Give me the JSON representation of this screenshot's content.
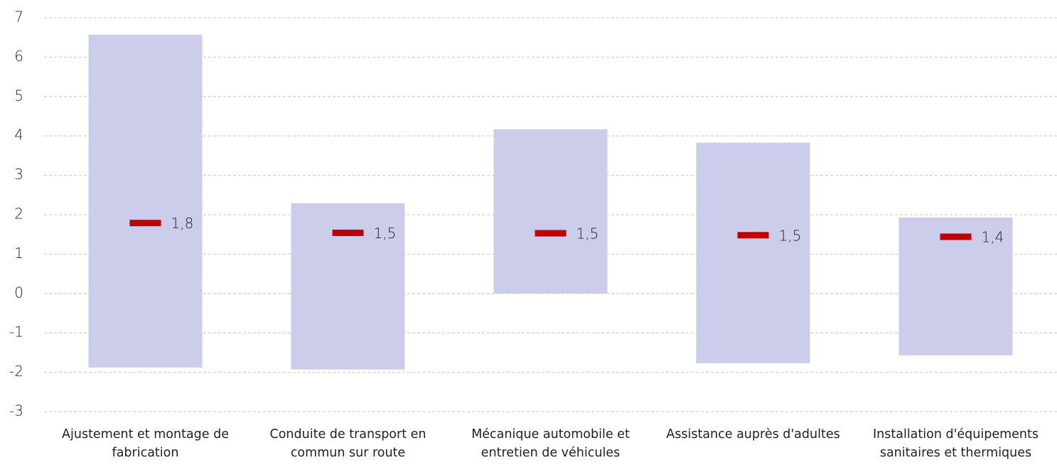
{
  "chart_data": {
    "type": "range",
    "categories": [
      "Ajustement et montage de fabrication",
      "Conduite de transport en commun sur route",
      "Mécanique automobile et entretien de véhicules",
      "Assistance auprès d'adultes",
      "Installation d'équipements sanitaires et thermiques"
    ],
    "low": [
      -1.88,
      -1.93,
      0,
      -1.77,
      -1.57
    ],
    "high": [
      6.57,
      2.29,
      4.17,
      3.83,
      1.93
    ],
    "values": [
      1.79,
      1.54,
      1.53,
      1.48,
      1.44
    ],
    "value_labels": [
      "1,8",
      "1,5",
      "1,5",
      "1,5",
      "1,4"
    ],
    "bar_color": "#cbcdeb",
    "marker_color": "#c00000",
    "ylim": [
      -3,
      7
    ],
    "yticks": [
      -3,
      -2,
      -1,
      0,
      1,
      2,
      3,
      4,
      5,
      6,
      7
    ],
    "grid": true
  }
}
